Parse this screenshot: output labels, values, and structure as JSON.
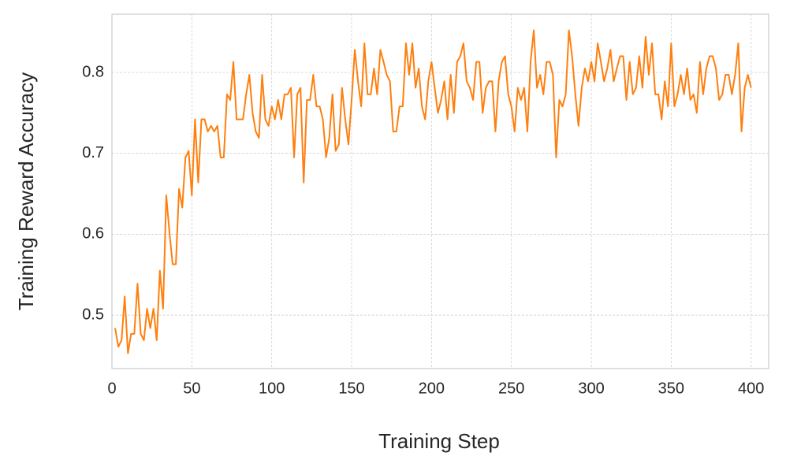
{
  "chart_data": {
    "type": "line",
    "xlabel": "Training Step",
    "ylabel": "Training Reward Accuracy",
    "x": [
      2,
      4,
      6,
      8,
      10,
      12,
      14,
      16,
      18,
      20,
      22,
      24,
      26,
      28,
      30,
      32,
      34,
      36,
      38,
      40,
      42,
      44,
      46,
      48,
      50,
      52,
      54,
      56,
      58,
      60,
      62,
      64,
      66,
      68,
      70,
      72,
      74,
      76,
      78,
      80,
      82,
      84,
      86,
      88,
      90,
      92,
      94,
      96,
      98,
      100,
      102,
      104,
      106,
      108,
      110,
      112,
      114,
      116,
      118,
      120,
      122,
      124,
      126,
      128,
      130,
      132,
      134,
      136,
      138,
      140,
      142,
      144,
      146,
      148,
      150,
      152,
      154,
      156,
      158,
      160,
      162,
      164,
      166,
      168,
      170,
      172,
      174,
      176,
      178,
      180,
      182,
      184,
      186,
      188,
      190,
      192,
      194,
      196,
      198,
      200,
      202,
      204,
      206,
      208,
      210,
      212,
      214,
      216,
      218,
      220,
      222,
      224,
      226,
      228,
      230,
      232,
      234,
      236,
      238,
      240,
      242,
      244,
      246,
      248,
      250,
      252,
      254,
      256,
      258,
      260,
      262,
      264,
      266,
      268,
      270,
      272,
      274,
      276,
      278,
      280,
      282,
      284,
      286,
      288,
      290,
      292,
      294,
      296,
      298,
      300,
      302,
      304,
      306,
      308,
      310,
      312,
      314,
      316,
      318,
      320,
      322,
      324,
      326,
      328,
      330,
      332,
      334,
      336,
      338,
      340,
      342,
      344,
      346,
      348,
      350,
      352,
      354,
      356,
      358,
      360,
      362,
      364,
      366,
      368,
      370,
      372,
      374,
      376,
      378,
      380,
      382,
      384,
      386,
      388,
      390,
      392,
      394,
      396,
      398,
      400
    ],
    "series": [
      {
        "name": "Training Reward Accuracy",
        "color": "#ff7f0e",
        "values": [
          0.484,
          0.461,
          0.469,
          0.523,
          0.453,
          0.477,
          0.477,
          0.539,
          0.477,
          0.469,
          0.508,
          0.484,
          0.508,
          0.469,
          0.555,
          0.508,
          0.648,
          0.602,
          0.563,
          0.563,
          0.656,
          0.633,
          0.695,
          0.703,
          0.648,
          0.742,
          0.664,
          0.742,
          0.742,
          0.727,
          0.734,
          0.727,
          0.734,
          0.695,
          0.695,
          0.773,
          0.766,
          0.813,
          0.742,
          0.742,
          0.742,
          0.773,
          0.797,
          0.75,
          0.727,
          0.719,
          0.797,
          0.742,
          0.734,
          0.758,
          0.742,
          0.766,
          0.742,
          0.773,
          0.773,
          0.781,
          0.695,
          0.773,
          0.781,
          0.664,
          0.766,
          0.766,
          0.797,
          0.758,
          0.758,
          0.742,
          0.695,
          0.719,
          0.773,
          0.703,
          0.711,
          0.781,
          0.742,
          0.711,
          0.766,
          0.828,
          0.789,
          0.758,
          0.836,
          0.773,
          0.773,
          0.805,
          0.773,
          0.828,
          0.813,
          0.797,
          0.789,
          0.727,
          0.727,
          0.758,
          0.758,
          0.836,
          0.797,
          0.836,
          0.781,
          0.805,
          0.758,
          0.742,
          0.789,
          0.813,
          0.781,
          0.75,
          0.766,
          0.789,
          0.742,
          0.797,
          0.75,
          0.813,
          0.82,
          0.836,
          0.789,
          0.781,
          0.766,
          0.813,
          0.813,
          0.75,
          0.781,
          0.789,
          0.789,
          0.727,
          0.789,
          0.813,
          0.82,
          0.773,
          0.758,
          0.727,
          0.781,
          0.766,
          0.781,
          0.727,
          0.813,
          0.852,
          0.781,
          0.797,
          0.773,
          0.813,
          0.813,
          0.797,
          0.695,
          0.766,
          0.758,
          0.773,
          0.852,
          0.82,
          0.773,
          0.734,
          0.781,
          0.805,
          0.789,
          0.813,
          0.789,
          0.836,
          0.813,
          0.789,
          0.805,
          0.828,
          0.789,
          0.805,
          0.82,
          0.82,
          0.766,
          0.813,
          0.773,
          0.781,
          0.82,
          0.781,
          0.844,
          0.797,
          0.836,
          0.773,
          0.773,
          0.742,
          0.789,
          0.758,
          0.836,
          0.758,
          0.773,
          0.797,
          0.773,
          0.805,
          0.766,
          0.773,
          0.75,
          0.813,
          0.773,
          0.805,
          0.82,
          0.82,
          0.805,
          0.766,
          0.773,
          0.797,
          0.797,
          0.773,
          0.797,
          0.836,
          0.727,
          0.781,
          0.797,
          0.781
        ]
      }
    ],
    "xlim": [
      0,
      411
    ],
    "ylim": [
      0.434,
      0.872
    ],
    "xticks": [
      0,
      50,
      100,
      150,
      200,
      250,
      300,
      350,
      400
    ],
    "yticks": [
      0.5,
      0.6,
      0.7,
      0.8
    ],
    "grid": true
  }
}
